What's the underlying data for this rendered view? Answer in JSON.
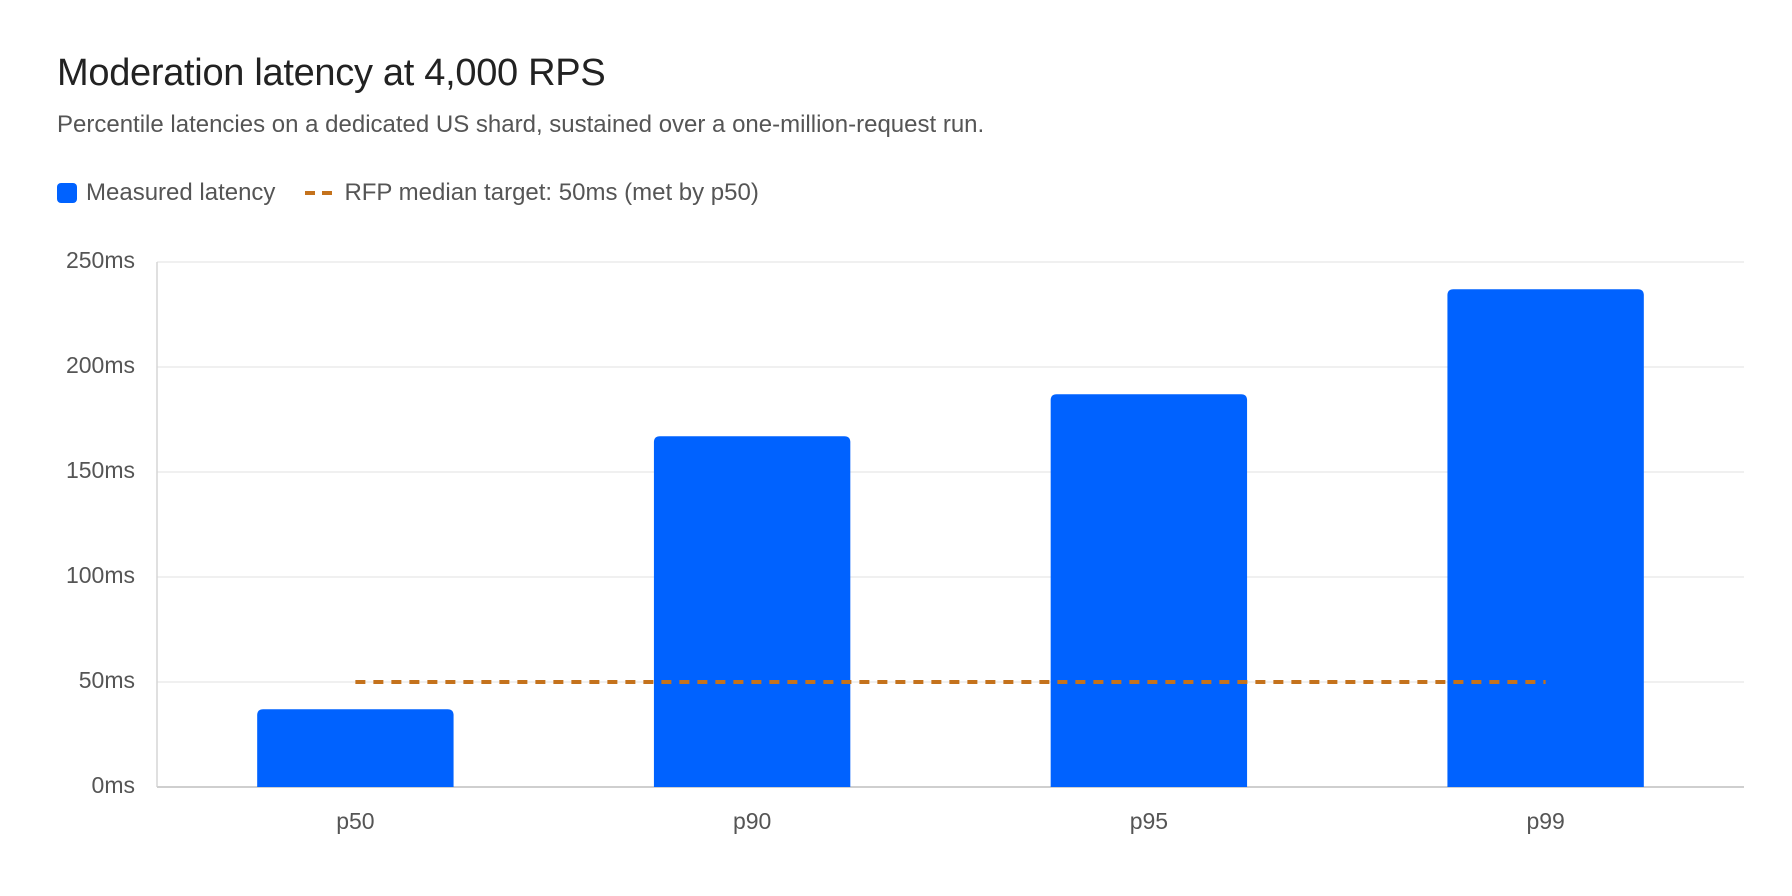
{
  "chart_data": {
    "type": "bar",
    "title": "Moderation latency at 4,000 RPS",
    "subtitle": "Percentile latencies on a dedicated US shard, sustained over a one-million-request run.",
    "categories": [
      "p50",
      "p90",
      "p95",
      "p99"
    ],
    "series": [
      {
        "name": "Measured latency",
        "color": "#0062ff",
        "values": [
          37,
          167,
          187,
          237
        ]
      }
    ],
    "target": {
      "name": "RFP median target: 50ms (met by p50)",
      "value": 50,
      "color": "#c4721c"
    },
    "ylim": [
      0,
      250
    ],
    "yticks": [
      {
        "value": 0,
        "label": "0ms"
      },
      {
        "value": 50,
        "label": "50ms"
      },
      {
        "value": 100,
        "label": "100ms"
      },
      {
        "value": 150,
        "label": "150ms"
      },
      {
        "value": 200,
        "label": "200ms"
      },
      {
        "value": 250,
        "label": "250ms"
      }
    ],
    "grid": true,
    "legend": "top-left"
  }
}
